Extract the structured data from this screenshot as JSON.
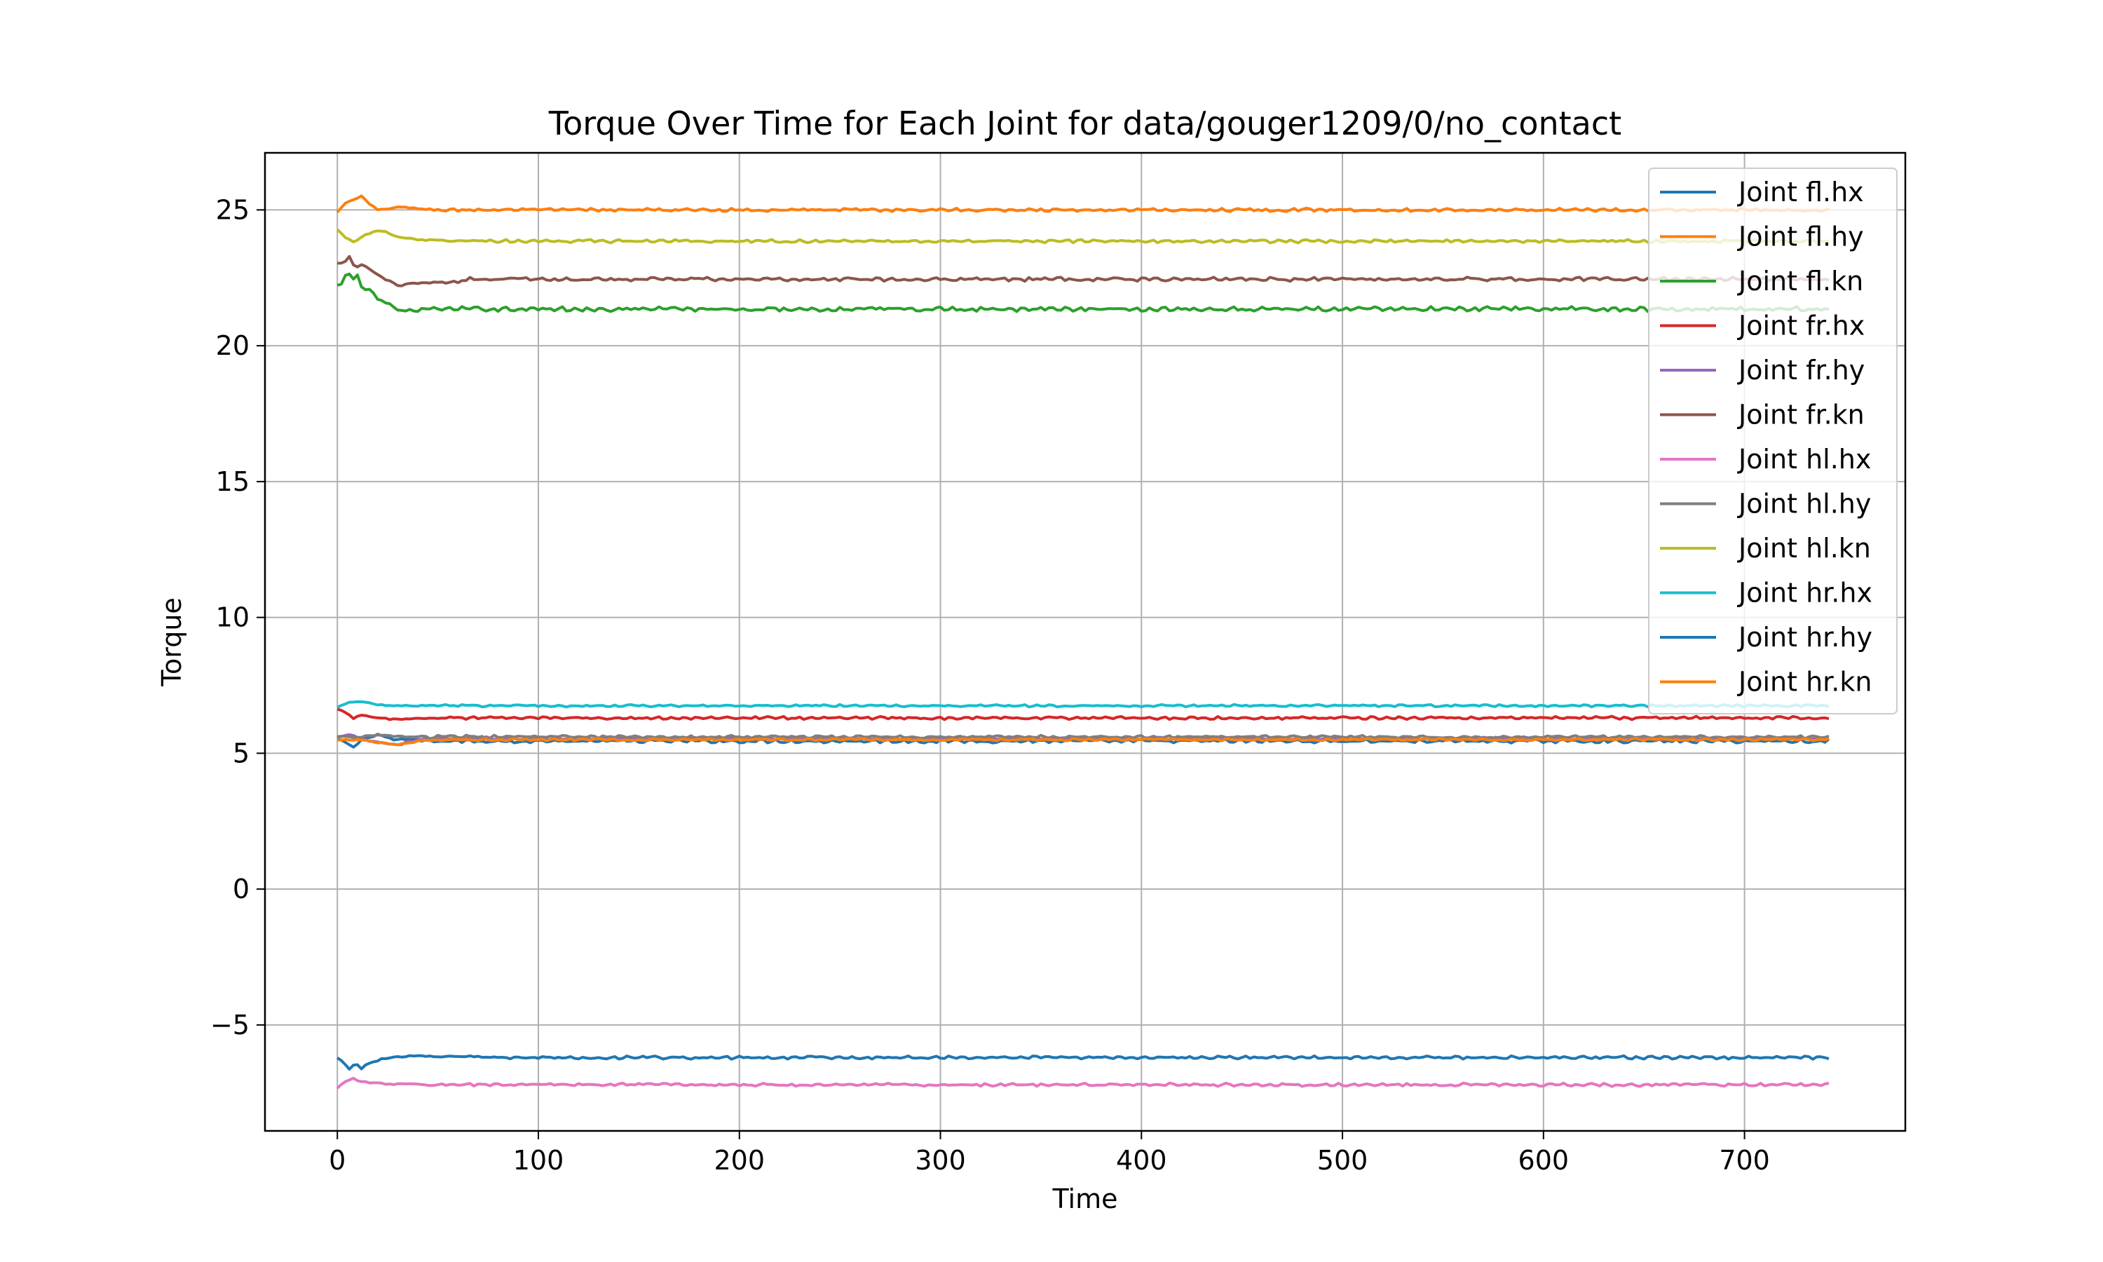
{
  "chart_data": {
    "type": "line",
    "title": "Torque Over Time for Each Joint for data/gouger1209/0/no_contact",
    "xlabel": "Time",
    "ylabel": "Torque",
    "xlim": [
      -36,
      780
    ],
    "ylim": [
      -8.9,
      27.1
    ],
    "xticks": [
      0,
      100,
      200,
      300,
      400,
      500,
      600,
      700
    ],
    "yticks": [
      -5,
      0,
      5,
      10,
      15,
      20,
      25
    ],
    "grid": true,
    "legend_position": "top-right",
    "x_range": [
      0,
      742
    ],
    "series": [
      {
        "name": "Joint fl.hx",
        "color": "#1f77b4",
        "steady": 5.45,
        "start": 5.5,
        "noise": 0.05,
        "transient": [
          [
            0,
            5.5
          ],
          [
            4,
            5.4
          ],
          [
            8,
            5.2
          ],
          [
            12,
            5.5
          ],
          [
            20,
            5.7
          ],
          [
            28,
            5.5
          ],
          [
            40,
            5.5
          ]
        ]
      },
      {
        "name": "Joint fl.hy",
        "color": "#ff7f0e",
        "steady": 25.0,
        "start": 24.9,
        "noise": 0.04,
        "transient": [
          [
            0,
            24.9
          ],
          [
            3,
            25.2
          ],
          [
            6,
            25.3
          ],
          [
            9,
            25.4
          ],
          [
            12,
            25.5
          ],
          [
            16,
            25.2
          ],
          [
            20,
            25.0
          ],
          [
            30,
            25.1
          ],
          [
            50,
            25.0
          ]
        ]
      },
      {
        "name": "Joint fl.kn",
        "color": "#2ca02c",
        "steady": 21.35,
        "start": 22.2,
        "noise": 0.06,
        "transient": [
          [
            0,
            22.2
          ],
          [
            3,
            22.3
          ],
          [
            5,
            22.8
          ],
          [
            7,
            22.4
          ],
          [
            10,
            22.6
          ],
          [
            13,
            22.0
          ],
          [
            16,
            22.1
          ],
          [
            20,
            21.7
          ],
          [
            25,
            21.6
          ],
          [
            30,
            21.3
          ],
          [
            40,
            21.3
          ]
        ]
      },
      {
        "name": "Joint fr.hx",
        "color": "#d62728",
        "steady": 6.3,
        "start": 6.6,
        "noise": 0.04,
        "transient": [
          [
            0,
            6.6
          ],
          [
            5,
            6.5
          ],
          [
            8,
            6.3
          ],
          [
            12,
            6.4
          ],
          [
            18,
            6.3
          ],
          [
            30,
            6.25
          ],
          [
            50,
            6.3
          ]
        ]
      },
      {
        "name": "Joint fr.hy",
        "color": "#9467bd",
        "steady": 5.55,
        "start": 5.6,
        "noise": 0.04,
        "transient": [
          [
            0,
            5.6
          ],
          [
            6,
            5.7
          ],
          [
            12,
            5.5
          ],
          [
            20,
            5.4
          ],
          [
            30,
            5.3
          ],
          [
            40,
            5.5
          ],
          [
            60,
            5.55
          ]
        ]
      },
      {
        "name": "Joint fr.kn",
        "color": "#8c564b",
        "steady": 22.45,
        "start": 23.0,
        "noise": 0.05,
        "transient": [
          [
            0,
            23.0
          ],
          [
            4,
            23.1
          ],
          [
            6,
            23.3
          ],
          [
            9,
            22.8
          ],
          [
            12,
            23.0
          ],
          [
            16,
            22.8
          ],
          [
            20,
            22.6
          ],
          [
            25,
            22.4
          ],
          [
            30,
            22.2
          ],
          [
            35,
            22.3
          ],
          [
            60,
            22.35
          ]
        ]
      },
      {
        "name": "Joint hl.hx",
        "color": "#e377c2",
        "steady": -7.2,
        "start": -7.3,
        "noise": 0.04,
        "transient": [
          [
            0,
            -7.3
          ],
          [
            4,
            -7.1
          ],
          [
            8,
            -6.95
          ],
          [
            12,
            -7.1
          ],
          [
            20,
            -7.15
          ],
          [
            40,
            -7.2
          ]
        ]
      },
      {
        "name": "Joint hl.hy",
        "color": "#7f7f7f",
        "steady": 5.6,
        "start": 5.6,
        "noise": 0.04,
        "transient": [
          [
            0,
            5.6
          ],
          [
            10,
            5.6
          ],
          [
            20,
            5.65
          ],
          [
            40,
            5.6
          ]
        ]
      },
      {
        "name": "Joint hl.kn",
        "color": "#bcbd22",
        "steady": 23.85,
        "start": 24.3,
        "noise": 0.04,
        "transient": [
          [
            0,
            24.3
          ],
          [
            4,
            24.0
          ],
          [
            8,
            23.8
          ],
          [
            12,
            24.0
          ],
          [
            18,
            24.2
          ],
          [
            24,
            24.2
          ],
          [
            30,
            24.0
          ],
          [
            40,
            23.9
          ],
          [
            60,
            23.85
          ]
        ]
      },
      {
        "name": "Joint hr.hx",
        "color": "#17becf",
        "steady": 6.75,
        "start": 6.7,
        "noise": 0.03,
        "transient": [
          [
            0,
            6.7
          ],
          [
            5,
            6.85
          ],
          [
            10,
            6.9
          ],
          [
            15,
            6.85
          ],
          [
            25,
            6.75
          ],
          [
            40,
            6.75
          ]
        ]
      },
      {
        "name": "Joint hr.hy",
        "color": "#1f77b4",
        "steady": -6.2,
        "start": -6.2,
        "noise": 0.04,
        "transient": [
          [
            0,
            -6.2
          ],
          [
            3,
            -6.4
          ],
          [
            6,
            -6.6
          ],
          [
            9,
            -6.4
          ],
          [
            12,
            -6.6
          ],
          [
            16,
            -6.4
          ],
          [
            20,
            -6.3
          ],
          [
            25,
            -6.2
          ],
          [
            35,
            -6.15
          ],
          [
            60,
            -6.15
          ],
          [
            80,
            -6.2
          ]
        ]
      },
      {
        "name": "Joint hr.kn",
        "color": "#ff7f0e",
        "steady": 5.5,
        "start": 5.5,
        "noise": 0.03,
        "transient": [
          [
            0,
            5.5
          ],
          [
            10,
            5.5
          ],
          [
            20,
            5.4
          ],
          [
            30,
            5.3
          ],
          [
            40,
            5.45
          ],
          [
            60,
            5.5
          ]
        ]
      }
    ]
  }
}
